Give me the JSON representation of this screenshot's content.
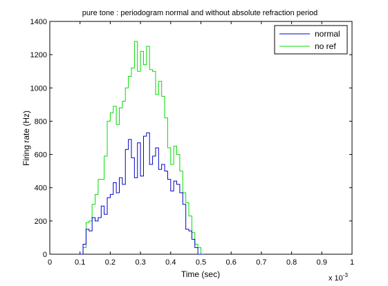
{
  "chart_data": {
    "type": "line",
    "step": true,
    "title": "pure tone : periodogram normal and without absolute refraction period",
    "xlabel": "Time (sec)",
    "ylabel": "Firing rate (Hz)",
    "x_multiplier": "x 10",
    "x_exponent": "-3",
    "xlim": [
      0,
      1
    ],
    "ylim": [
      0,
      1400
    ],
    "xticks": [
      0,
      0.1,
      0.2,
      0.3,
      0.4,
      0.5,
      0.6,
      0.7,
      0.8,
      0.9,
      1
    ],
    "xtick_labels": [
      "0",
      "0.1",
      "0.2",
      "0.3",
      "0.4",
      "0.5",
      "0.6",
      "0.7",
      "0.8",
      "0.9",
      "1"
    ],
    "yticks": [
      0,
      200,
      400,
      600,
      800,
      1000,
      1200,
      1400
    ],
    "ytick_labels": [
      "0",
      "200",
      "400",
      "600",
      "800",
      "1000",
      "1200",
      "1400"
    ],
    "grid": false,
    "legend_position": "top-right",
    "bin_width": 0.01,
    "bin_start": 0.1,
    "series": [
      {
        "name": "normal",
        "color": "#0000cc",
        "values": [
          0,
          60,
          150,
          140,
          220,
          200,
          220,
          290,
          240,
          340,
          360,
          430,
          370,
          460,
          420,
          630,
          690,
          580,
          460,
          670,
          470,
          710,
          730,
          540,
          590,
          640,
          510,
          540,
          500,
          450,
          380,
          440,
          420,
          370,
          300,
          150,
          140,
          90,
          40,
          0,
          0
        ]
      },
      {
        "name": "no ref",
        "color": "#00dd00",
        "values": [
          0,
          40,
          190,
          200,
          300,
          360,
          450,
          450,
          590,
          800,
          850,
          890,
          780,
          880,
          920,
          1000,
          1070,
          1120,
          1280,
          1100,
          1220,
          1140,
          1250,
          1110,
          1100,
          960,
          1040,
          950,
          820,
          640,
          540,
          650,
          600,
          500,
          370,
          310,
          230,
          130,
          60,
          40,
          0
        ]
      }
    ]
  }
}
